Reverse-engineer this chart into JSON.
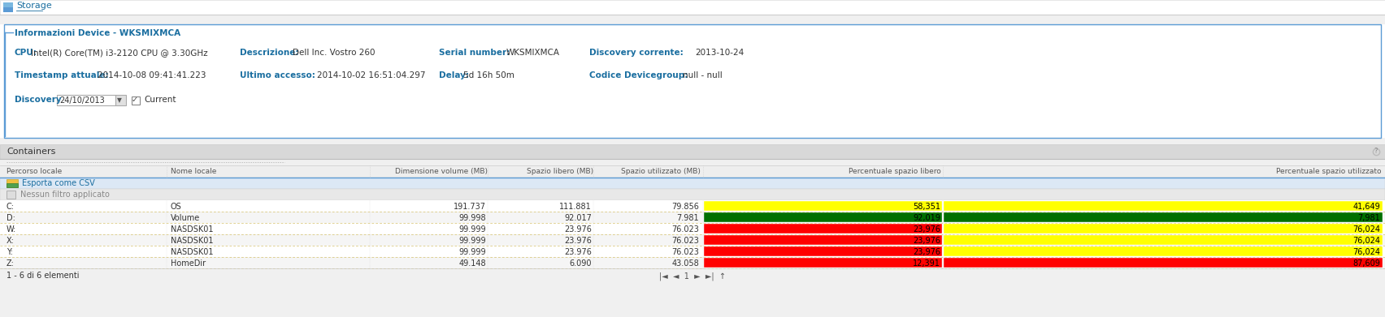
{
  "title": "Storage",
  "section_title": "Informazioni Device - WKSMIXMCA",
  "cpu_label": "CPU:",
  "cpu_val": "Intel(R) Core(TM) i3-2120 CPU @ 3.30GHz",
  "descrizione_label": "Descrizione:",
  "descrizione_val": "Dell Inc. Vostro 260",
  "serial_label": "Serial number:",
  "serial_val": "WKSMIXMCA",
  "discovery_corrente_label": "Discovery corrente:",
  "discovery_corrente_val": "2013-10-24",
  "timestamp_label": "Timestamp attuale:",
  "timestamp_val": "2014-10-08 09:41:41.223",
  "ultimo_accesso_label": "Ultimo accesso:",
  "ultimo_accesso_val": "2014-10-02 16:51:04.297",
  "delay_label": "Delay:",
  "delay_val": "5d 16h 50m",
  "codice_label": "Codice Devicegroup:",
  "codice_val": "null - null",
  "discovery_label": "Discovery",
  "discovery_date": "24/10/2013",
  "current_label": "Current",
  "containers_title": "Containers",
  "col_headers": [
    "Percorso locale",
    "Nome locale",
    "Dimensione volume (MB)",
    "Spazio libero (MB)",
    "Spazio utilizzato (MB)",
    "Percentuale spazio libero",
    "Percentuale spazio utilizzato"
  ],
  "export_label": "Esporta come CSV",
  "filter_label": "Nessun filtro applicato",
  "rows": [
    {
      "path": "C:",
      "name": "OS",
      "dim": "191.737",
      "free": "111.881",
      "used": "79.856",
      "pct_free": "58,351",
      "pct_used": "41,649",
      "color_free": "#ffff00",
      "color_used": "#ffff00"
    },
    {
      "path": "D:",
      "name": "Volume",
      "dim": "99.998",
      "free": "92.017",
      "used": "7.981",
      "pct_free": "92,019",
      "pct_used": "7,981",
      "color_free": "#007000",
      "color_used": "#007000"
    },
    {
      "path": "W:",
      "name": "NASDSK01",
      "dim": "99.999",
      "free": "23.976",
      "used": "76.023",
      "pct_free": "23,976",
      "pct_used": "76,024",
      "color_free": "#ff0000",
      "color_used": "#ffff00"
    },
    {
      "path": "X:",
      "name": "NASDSK01",
      "dim": "99.999",
      "free": "23.976",
      "used": "76.023",
      "pct_free": "23,976",
      "pct_used": "76,024",
      "color_free": "#ff0000",
      "color_used": "#ffff00"
    },
    {
      "path": "Y:",
      "name": "NASDSK01",
      "dim": "99.999",
      "free": "23.976",
      "used": "76.023",
      "pct_free": "23,976",
      "pct_used": "76,024",
      "color_free": "#ff0000",
      "color_used": "#ffff00"
    },
    {
      "path": "Z:",
      "name": "HomeDir",
      "dim": "49.148",
      "free": "6.090",
      "used": "43.058",
      "pct_free": "12,391",
      "pct_used": "87,609",
      "color_free": "#ff0000",
      "color_used": "#ff0000"
    }
  ],
  "pagination": "1 - 6 di 6 elementi",
  "bg_color": "#f0f0f0",
  "panel_bg": "#ffffff",
  "text_color": "#333333",
  "blue_color": "#1a6ea0",
  "header_row_bg": "#e8e8e8",
  "row_bg": "#ffffff",
  "row_bg_alt": "#f5f5f5",
  "containers_header_bg": "#d8d8d8",
  "export_bg": "#dce8f5",
  "filter_bg": "#ececec",
  "pag_bg": "#e8e8e8"
}
